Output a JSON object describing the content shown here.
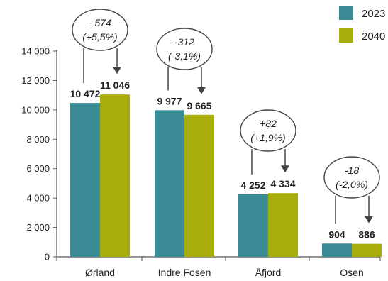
{
  "chart_data": {
    "type": "bar",
    "categories": [
      "Ørland",
      "Indre Fosen",
      "Åfjord",
      "Osen"
    ],
    "series": [
      {
        "name": "2023",
        "color": "#3a8b96",
        "values": [
          10472,
          9977,
          4252,
          904
        ],
        "value_labels": [
          "10 472",
          "9 977",
          "4 252",
          "904"
        ]
      },
      {
        "name": "2040",
        "color": "#a8ad0c",
        "values": [
          11046,
          9665,
          4334,
          886
        ],
        "value_labels": [
          "11 046",
          "9 665",
          "4 334",
          "886"
        ]
      }
    ],
    "ylim": [
      0,
      14000
    ],
    "yticks": [
      {
        "value": 0,
        "label": "0"
      },
      {
        "value": 2000,
        "label": "2 000"
      },
      {
        "value": 4000,
        "label": "4 000"
      },
      {
        "value": 6000,
        "label": "6 000"
      },
      {
        "value": 8000,
        "label": "8 000"
      },
      {
        "value": 10000,
        "label": "10 000"
      },
      {
        "value": 12000,
        "label": "12 000"
      },
      {
        "value": 14000,
        "label": "14 000"
      }
    ],
    "change_annotations": [
      {
        "line1": "+574",
        "line2": "(+5,5%)"
      },
      {
        "line1": "-312",
        "line2": "(-3,1%)"
      },
      {
        "line1": "+82",
        "line2": "(+1,9%)"
      },
      {
        "line1": "-18",
        "line2": "(-2,0%)"
      }
    ],
    "title": "",
    "xlabel": "",
    "ylabel": "",
    "grid": false,
    "legend_placement": "top-right",
    "colors": {
      "axis": "#555555",
      "text": "#222222",
      "annotation_line": "#444444"
    }
  }
}
